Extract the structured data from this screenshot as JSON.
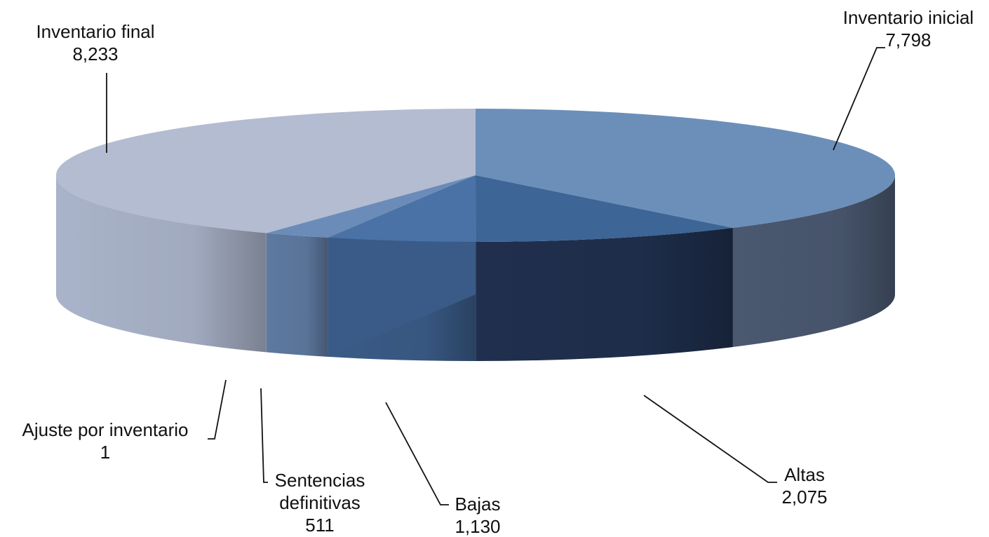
{
  "chart_data": {
    "type": "pie",
    "title": "",
    "slices": [
      {
        "label": "Inventario inicial",
        "label_lines": [
          "Inventario inicial"
        ],
        "value": 7798,
        "value_text": "7,798",
        "color": "#6c8fba",
        "side_color": "#4a5870"
      },
      {
        "label": "Altas",
        "label_lines": [
          "Altas"
        ],
        "value": 2075,
        "value_text": "2,075",
        "color": "#3d6595",
        "side_color": "#1f2f4d"
      },
      {
        "label": "Bajas",
        "label_lines": [
          "Bajas"
        ],
        "value": 1130,
        "value_text": "1,130",
        "color": "#4a72a6",
        "side_color": "#3a5b87"
      },
      {
        "label": "Sentencias definitivas",
        "label_lines": [
          "Sentencias",
          "definitivas"
        ],
        "value": 511,
        "value_text": "511",
        "color": "#6b8cb8",
        "side_color": "#5e79a0"
      },
      {
        "label": "Ajuste por inventario",
        "label_lines": [
          "Ajuste por inventario"
        ],
        "value": 1,
        "value_text": "1",
        "color": "#7f9cc3",
        "side_color": "#8fa5c5"
      },
      {
        "label": "Inventario final",
        "label_lines": [
          "Inventario final"
        ],
        "value": 8233,
        "value_text": "8,233",
        "color": "#b3bcd0",
        "side_color": "#a9b3c9"
      }
    ]
  }
}
